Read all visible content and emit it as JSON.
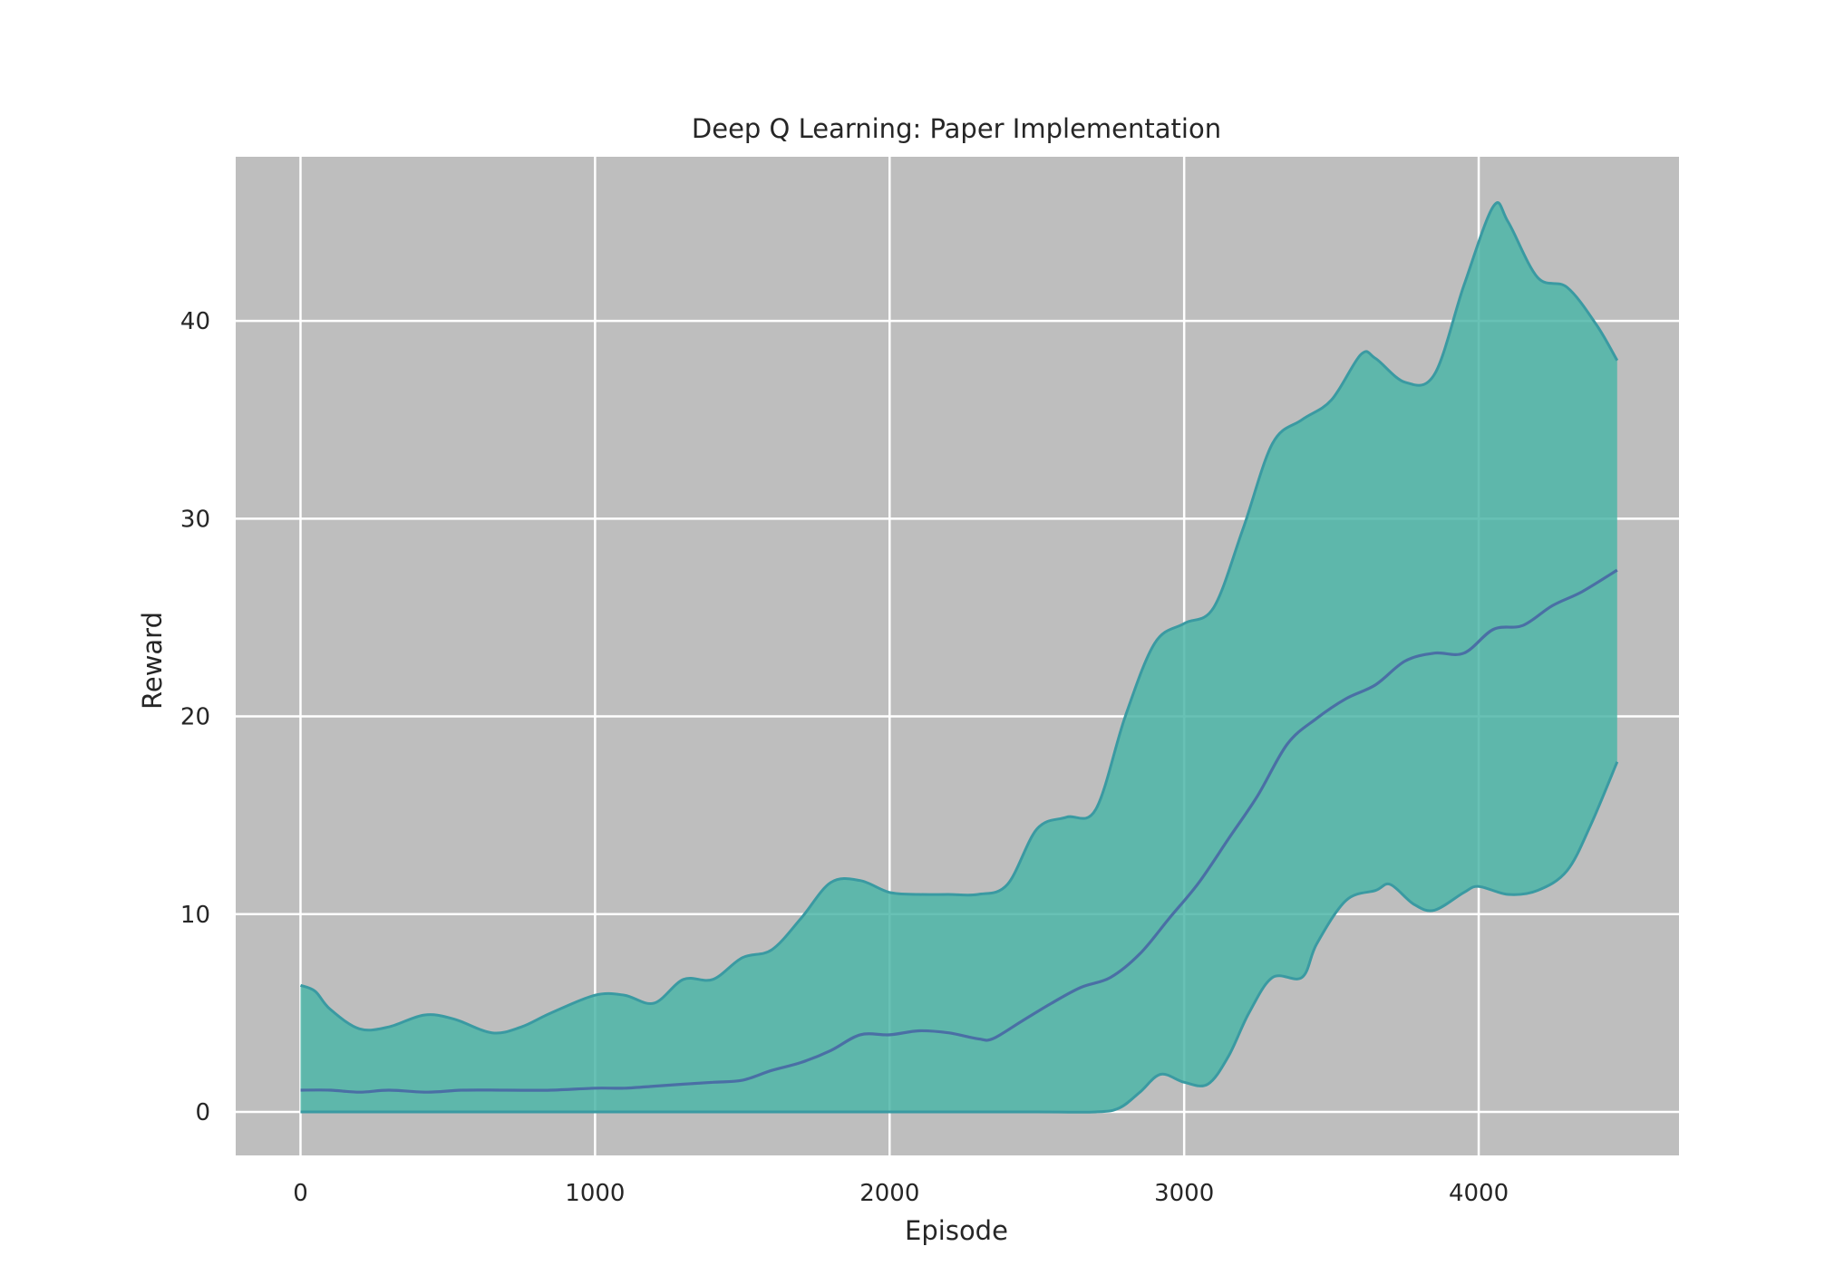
{
  "chart_data": {
    "type": "area",
    "title": "Deep Q Learning: Paper Implementation",
    "xlabel": "Episode",
    "ylabel": "Reward",
    "xlim": [
      -220,
      4680
    ],
    "ylim": [
      -2.2,
      48.3
    ],
    "xticks": [
      0,
      1000,
      2000,
      3000,
      4000
    ],
    "yticks": [
      0,
      10,
      20,
      30,
      40
    ],
    "grid": true,
    "legend": "none",
    "colors": {
      "plot_background": "#bebebe",
      "grid": "#ffffff",
      "band_fill": "#4db6a8",
      "band_edge": "#3a9aa2",
      "mean_line": "#4a6fa5"
    },
    "series": [
      {
        "role": "upper",
        "x": [
          0,
          50,
          100,
          200,
          300,
          420,
          520,
          650,
          750,
          850,
          1000,
          1100,
          1200,
          1300,
          1400,
          1500,
          1600,
          1700,
          1800,
          1900,
          2000,
          2100,
          2200,
          2300,
          2400,
          2500,
          2600,
          2700,
          2800,
          2900,
          3000,
          3100,
          3200,
          3300,
          3400,
          3500,
          3600,
          3650,
          3750,
          3850,
          3950,
          4050,
          4100,
          4200,
          4300,
          4400,
          4470
        ],
        "y": [
          6.4,
          6.1,
          5.2,
          4.2,
          4.3,
          4.9,
          4.7,
          4.0,
          4.3,
          5.0,
          5.9,
          5.9,
          5.5,
          6.7,
          6.7,
          7.8,
          8.2,
          9.8,
          11.6,
          11.7,
          11.1,
          11.0,
          11.0,
          11.0,
          11.5,
          14.3,
          14.9,
          15.3,
          20.0,
          23.7,
          24.7,
          25.5,
          29.5,
          33.8,
          35.0,
          36.0,
          38.3,
          38.1,
          36.9,
          37.3,
          41.8,
          45.8,
          45.0,
          42.2,
          41.7,
          39.8,
          38.0
        ]
      },
      {
        "role": "mean",
        "x": [
          0,
          100,
          200,
          300,
          430,
          550,
          700,
          850,
          1000,
          1100,
          1200,
          1300,
          1400,
          1500,
          1600,
          1700,
          1800,
          1900,
          2000,
          2100,
          2200,
          2300,
          2350,
          2450,
          2550,
          2650,
          2750,
          2850,
          2950,
          3050,
          3150,
          3250,
          3350,
          3450,
          3550,
          3650,
          3750,
          3850,
          3950,
          4050,
          4150,
          4250,
          4350,
          4470
        ],
        "y": [
          1.1,
          1.1,
          1.0,
          1.1,
          1.0,
          1.1,
          1.1,
          1.1,
          1.2,
          1.2,
          1.3,
          1.4,
          1.5,
          1.6,
          2.1,
          2.5,
          3.1,
          3.9,
          3.9,
          4.1,
          4.0,
          3.7,
          3.7,
          4.6,
          5.5,
          6.3,
          6.8,
          8.0,
          9.8,
          11.6,
          13.8,
          16.0,
          18.6,
          19.9,
          20.9,
          21.6,
          22.8,
          23.2,
          23.2,
          24.4,
          24.6,
          25.6,
          26.3,
          27.4
        ]
      },
      {
        "role": "lower",
        "x": [
          0,
          500,
          1000,
          1500,
          2000,
          2500,
          2700,
          2780,
          2850,
          2920,
          3000,
          3080,
          3150,
          3220,
          3300,
          3400,
          3450,
          3550,
          3650,
          3700,
          3780,
          3850,
          3950,
          4000,
          4100,
          4200,
          4300,
          4380,
          4470
        ],
        "y": [
          0.0,
          0.0,
          0.0,
          0.0,
          0.0,
          0.0,
          0.0,
          0.2,
          1.0,
          1.9,
          1.5,
          1.4,
          2.8,
          5.0,
          6.8,
          6.8,
          8.5,
          10.7,
          11.2,
          11.5,
          10.5,
          10.2,
          11.1,
          11.4,
          11.0,
          11.2,
          12.2,
          14.5,
          17.7
        ]
      }
    ]
  }
}
